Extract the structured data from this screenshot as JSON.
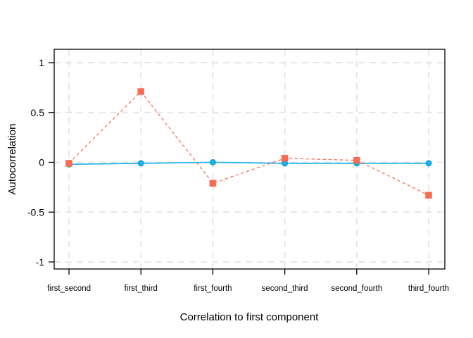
{
  "chart_data": {
    "type": "line",
    "title": "",
    "xlabel": "Correlation to first component",
    "ylabel": "Autocorrelation",
    "categories": [
      "first_second",
      "first_third",
      "first_fourth",
      "second_third",
      "second_fourth",
      "third_fourth"
    ],
    "yticks": [
      {
        "label": "1",
        "value": 1
      },
      {
        "label": "0.5",
        "value": 0.5
      },
      {
        "label": "0",
        "value": 0
      },
      {
        "label": "-0.5",
        "value": -0.5
      },
      {
        "label": "-1",
        "value": -1
      }
    ],
    "ylim": [
      -1.07,
      1.13
    ],
    "grid": "dashed both axes",
    "legend_position": "none",
    "series": [
      {
        "name": "blue-series",
        "marker": "circle",
        "line_style": "solid",
        "color": "#1db0e7",
        "marker_stroke": "#0d9ad6",
        "values": [
          -0.02,
          -0.01,
          0.0,
          -0.01,
          -0.01,
          -0.01
        ]
      },
      {
        "name": "red-series",
        "marker": "square",
        "line_style": "dashed",
        "color": "#fa6a51",
        "marker_stroke": "#fa6a51",
        "values": [
          -0.01,
          0.71,
          -0.21,
          0.04,
          0.02,
          -0.33
        ]
      }
    ],
    "grid_color": "#e4e4e4",
    "frame_color": "#000000"
  }
}
